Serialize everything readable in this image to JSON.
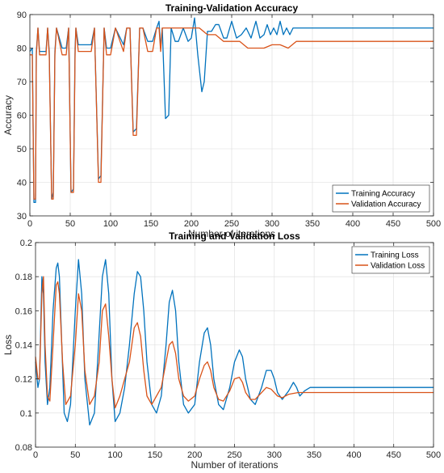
{
  "chart_data": [
    {
      "type": "line",
      "title": "Training-Validation Accuracy",
      "xlabel": "Number of iterations",
      "ylabel": "Accuracy",
      "xlim": [
        0,
        500
      ],
      "ylim": [
        30,
        90
      ],
      "xticks": [
        0,
        50,
        100,
        150,
        200,
        250,
        300,
        350,
        400,
        450,
        500
      ],
      "yticks": [
        30,
        40,
        50,
        60,
        70,
        80,
        90
      ],
      "grid": true,
      "legend": "bottom-right",
      "series": [
        {
          "name": "Training Accuracy",
          "color": "#0072BD",
          "x": [
            0,
            3,
            5,
            7,
            8,
            10,
            12,
            14,
            20,
            22,
            24,
            27,
            29,
            31,
            33,
            40,
            45,
            48,
            51,
            54,
            56,
            57,
            60,
            64,
            72,
            76,
            80,
            85,
            88,
            92,
            95,
            100,
            106,
            116,
            120,
            124,
            128,
            132,
            136,
            140,
            146,
            152,
            157,
            160,
            162,
            164,
            168,
            172,
            175,
            180,
            184,
            190,
            196,
            200,
            204,
            208,
            213,
            216,
            220,
            225,
            230,
            234,
            240,
            244,
            250,
            256,
            262,
            268,
            274,
            280,
            285,
            290,
            294,
            298,
            302,
            306,
            310,
            314,
            318,
            322,
            326,
            330,
            334,
            500
          ],
          "values": [
            79,
            80,
            34,
            34,
            79,
            86,
            79,
            79,
            79,
            86,
            79,
            35,
            37,
            79,
            86,
            80,
            80,
            86,
            37,
            38,
            80,
            86,
            81,
            81,
            81,
            81,
            86,
            41,
            42,
            86,
            80,
            80,
            86,
            81,
            86,
            86,
            55,
            56,
            86,
            86,
            82,
            82,
            86,
            88,
            80,
            86,
            59,
            60,
            86,
            82,
            82,
            86,
            82,
            83,
            89,
            78,
            67,
            70,
            85,
            85,
            87,
            87,
            83,
            83,
            88,
            83,
            84,
            86,
            83,
            88,
            83,
            84,
            87,
            84,
            86,
            84,
            88,
            84,
            86,
            84,
            86,
            86,
            86,
            86
          ]
        },
        {
          "name": "Validation Accuracy",
          "color": "#D95319",
          "x": [
            0,
            3,
            5,
            7,
            8,
            10,
            12,
            14,
            20,
            22,
            24,
            27,
            29,
            31,
            33,
            40,
            45,
            48,
            51,
            54,
            56,
            57,
            60,
            64,
            72,
            76,
            80,
            85,
            88,
            92,
            95,
            100,
            106,
            116,
            120,
            124,
            128,
            132,
            136,
            140,
            146,
            152,
            157,
            160,
            162,
            164,
            168,
            172,
            175,
            180,
            190,
            200,
            210,
            220,
            230,
            240,
            250,
            260,
            270,
            280,
            290,
            300,
            310,
            320,
            330,
            340,
            500
          ],
          "values": [
            78,
            78,
            35,
            35,
            78,
            86,
            78,
            78,
            78,
            86,
            78,
            35,
            35,
            78,
            86,
            78,
            78,
            86,
            37,
            37,
            78,
            86,
            79,
            79,
            79,
            79,
            86,
            40,
            40,
            86,
            78,
            78,
            86,
            79,
            86,
            86,
            54,
            54,
            86,
            86,
            79,
            79,
            86,
            86,
            79,
            86,
            86,
            86,
            86,
            86,
            86,
            86,
            86,
            84,
            84,
            82,
            82,
            82,
            80,
            80,
            80,
            81,
            81,
            80,
            82,
            82,
            82
          ]
        }
      ]
    },
    {
      "type": "line",
      "title": "Training and Validation Loss",
      "xlabel": "Number of iterations",
      "ylabel": "Loss",
      "xlim": [
        0,
        500
      ],
      "ylim": [
        0.08,
        0.2
      ],
      "xticks": [
        0,
        50,
        100,
        150,
        200,
        250,
        300,
        350,
        400,
        450,
        500
      ],
      "yticks": [
        0.08,
        0.1,
        0.12,
        0.14,
        0.16,
        0.18,
        0.2
      ],
      "grid": true,
      "legend": "top-right",
      "series": [
        {
          "name": "Training Loss",
          "color": "#0072BD",
          "x": [
            0,
            3,
            5,
            8,
            10,
            12,
            15,
            18,
            22,
            26,
            28,
            30,
            33,
            36,
            40,
            44,
            50,
            54,
            58,
            62,
            68,
            74,
            78,
            84,
            88,
            92,
            96,
            100,
            106,
            112,
            118,
            124,
            128,
            132,
            136,
            140,
            146,
            152,
            158,
            164,
            168,
            172,
            176,
            180,
            186,
            192,
            200,
            206,
            212,
            216,
            220,
            224,
            230,
            236,
            244,
            250,
            256,
            260,
            264,
            270,
            276,
            284,
            290,
            296,
            300,
            304,
            310,
            318,
            324,
            328,
            332,
            338,
            345,
            500
          ],
          "values": [
            0.13,
            0.115,
            0.12,
            0.18,
            0.17,
            0.13,
            0.105,
            0.115,
            0.16,
            0.185,
            0.188,
            0.18,
            0.14,
            0.1,
            0.095,
            0.105,
            0.16,
            0.19,
            0.17,
            0.12,
            0.093,
            0.1,
            0.13,
            0.18,
            0.19,
            0.17,
            0.12,
            0.095,
            0.1,
            0.115,
            0.14,
            0.17,
            0.183,
            0.18,
            0.16,
            0.13,
            0.105,
            0.1,
            0.11,
            0.14,
            0.165,
            0.172,
            0.16,
            0.13,
            0.105,
            0.1,
            0.105,
            0.13,
            0.147,
            0.15,
            0.14,
            0.12,
            0.105,
            0.102,
            0.115,
            0.13,
            0.137,
            0.133,
            0.12,
            0.108,
            0.105,
            0.115,
            0.125,
            0.125,
            0.12,
            0.112,
            0.108,
            0.113,
            0.118,
            0.115,
            0.11,
            0.113,
            0.115,
            0.115
          ]
        },
        {
          "name": "Validation Loss",
          "color": "#D95319",
          "x": [
            0,
            3,
            5,
            8,
            10,
            12,
            15,
            18,
            22,
            26,
            28,
            30,
            34,
            38,
            44,
            50,
            54,
            58,
            62,
            68,
            74,
            80,
            84,
            88,
            92,
            96,
            100,
            106,
            112,
            118,
            124,
            128,
            132,
            136,
            140,
            146,
            152,
            158,
            164,
            168,
            172,
            176,
            180,
            186,
            192,
            200,
            206,
            212,
            216,
            220,
            224,
            230,
            236,
            244,
            250,
            256,
            260,
            264,
            270,
            276,
            284,
            290,
            296,
            300,
            304,
            310,
            318,
            330,
            345,
            500
          ],
          "values": [
            0.133,
            0.12,
            0.12,
            0.17,
            0.18,
            0.14,
            0.11,
            0.107,
            0.14,
            0.175,
            0.177,
            0.17,
            0.13,
            0.105,
            0.11,
            0.14,
            0.17,
            0.16,
            0.125,
            0.105,
            0.11,
            0.13,
            0.16,
            0.164,
            0.145,
            0.12,
            0.103,
            0.11,
            0.12,
            0.13,
            0.15,
            0.153,
            0.145,
            0.125,
            0.11,
            0.105,
            0.11,
            0.115,
            0.13,
            0.14,
            0.142,
            0.135,
            0.12,
            0.11,
            0.107,
            0.11,
            0.12,
            0.128,
            0.13,
            0.125,
            0.115,
            0.108,
            0.107,
            0.113,
            0.12,
            0.121,
            0.118,
            0.112,
            0.108,
            0.108,
            0.112,
            0.115,
            0.114,
            0.112,
            0.11,
            0.109,
            0.111,
            0.112,
            0.112,
            0.112
          ]
        }
      ]
    }
  ]
}
